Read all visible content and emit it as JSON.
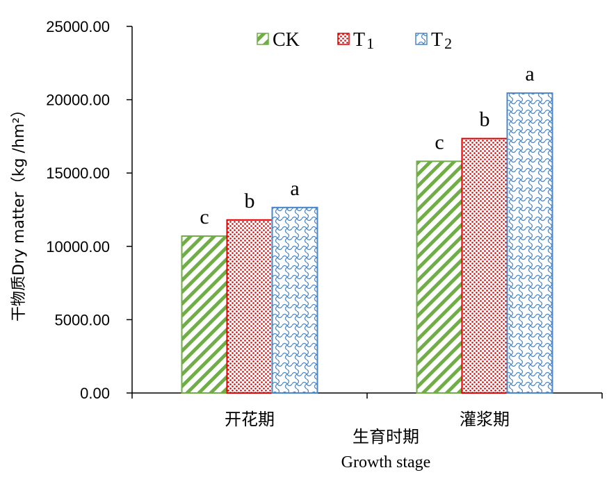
{
  "chart_data": {
    "type": "bar",
    "categories": [
      "开花期",
      "灌浆期"
    ],
    "series": [
      {
        "name": "CK",
        "legend_main": "CK",
        "legend_sub": "",
        "values": [
          10700,
          15800
        ],
        "labels": [
          "c",
          "c"
        ],
        "color": "#70ad47",
        "pattern": "diagonal-stripes"
      },
      {
        "name": "T1",
        "legend_main": "T",
        "legend_sub": "1",
        "values": [
          11800,
          17350
        ],
        "labels": [
          "b",
          "b"
        ],
        "color": "#e00000",
        "pattern": "dots"
      },
      {
        "name": "T2",
        "legend_main": "T",
        "legend_sub": "2",
        "values": [
          12650,
          20450
        ],
        "labels": [
          "a",
          "a"
        ],
        "color": "#4a86c8",
        "pattern": "weave"
      }
    ],
    "ylim": [
      0,
      25000
    ],
    "yticks": [
      "0.00",
      "5000.00",
      "10000.00",
      "15000.00",
      "20000.00",
      "25000.00"
    ],
    "ylabel": "干物质Dry matter（kg /hm²）",
    "xlabel_zh": "生育时期",
    "xlabel_en": "Growth stage",
    "legend_position": "top",
    "grid": false
  }
}
